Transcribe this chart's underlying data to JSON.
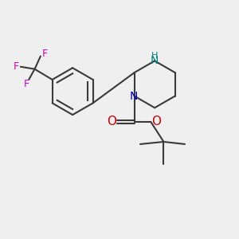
{
  "background_color": "#efefef",
  "bond_color": "#3a3a3a",
  "N_color": "#0000cc",
  "NH_color": "#008080",
  "O_color": "#cc0000",
  "F_color": "#cc00cc",
  "line_width": 1.5,
  "figsize": [
    3.0,
    3.0
  ],
  "dpi": 100,
  "xlim": [
    0,
    10
  ],
  "ylim": [
    0,
    10
  ]
}
